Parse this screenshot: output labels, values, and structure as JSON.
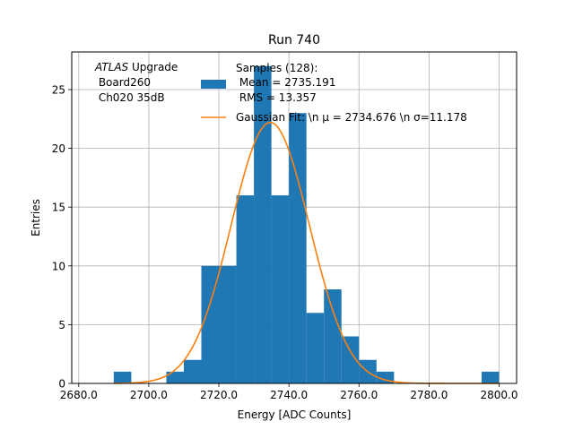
{
  "chart_data": {
    "type": "bar",
    "title": "Run 740",
    "xlabel": "Energy [ADC Counts]",
    "ylabel": "Entries",
    "xlim": [
      2678,
      2805
    ],
    "ylim": [
      0,
      28.2
    ],
    "grid": true,
    "x_ticks": [
      2680,
      2700,
      2720,
      2740,
      2760,
      2780,
      2800
    ],
    "x_tick_labels": [
      "2680.0",
      "2700.0",
      "2720.0",
      "2740.0",
      "2760.0",
      "2780.0",
      "2800.0"
    ],
    "y_ticks": [
      0,
      5,
      10,
      15,
      20,
      25
    ],
    "y_tick_labels": [
      "0",
      "5",
      "10",
      "15",
      "20",
      "25"
    ],
    "annotation": {
      "italic": "ATLAS",
      "line1_rest": " Upgrade",
      "line2": " Board260",
      "line3": " Ch020 35dB"
    },
    "legend": {
      "placement": "top-right",
      "hist_label_lines": [
        "Samples (128):",
        " Mean = 2735.191",
        " RMS = 13.357"
      ],
      "fit_label": "Gaussian Fit: \\n μ = 2734.676 \\n σ=11.178"
    },
    "histogram": {
      "name": "Samples (128)",
      "color": "#1f77b4",
      "bin_edges": [
        2690,
        2695,
        2700,
        2705,
        2710,
        2715,
        2720,
        2725,
        2730,
        2735,
        2740,
        2745,
        2750,
        2755,
        2760,
        2765,
        2770,
        2775,
        2780,
        2785,
        2790,
        2795,
        2800
      ],
      "counts": [
        1,
        0,
        0,
        1,
        2,
        10,
        10,
        16,
        27,
        16,
        23,
        6,
        8,
        4,
        2,
        1,
        0,
        0,
        0,
        0,
        0,
        1
      ]
    },
    "fit": {
      "name": "Gaussian Fit",
      "color": "#ff7f0e",
      "mu": 2734.676,
      "sigma": 11.178,
      "amplitude": 22.2,
      "x_range": [
        2690,
        2800
      ]
    }
  }
}
